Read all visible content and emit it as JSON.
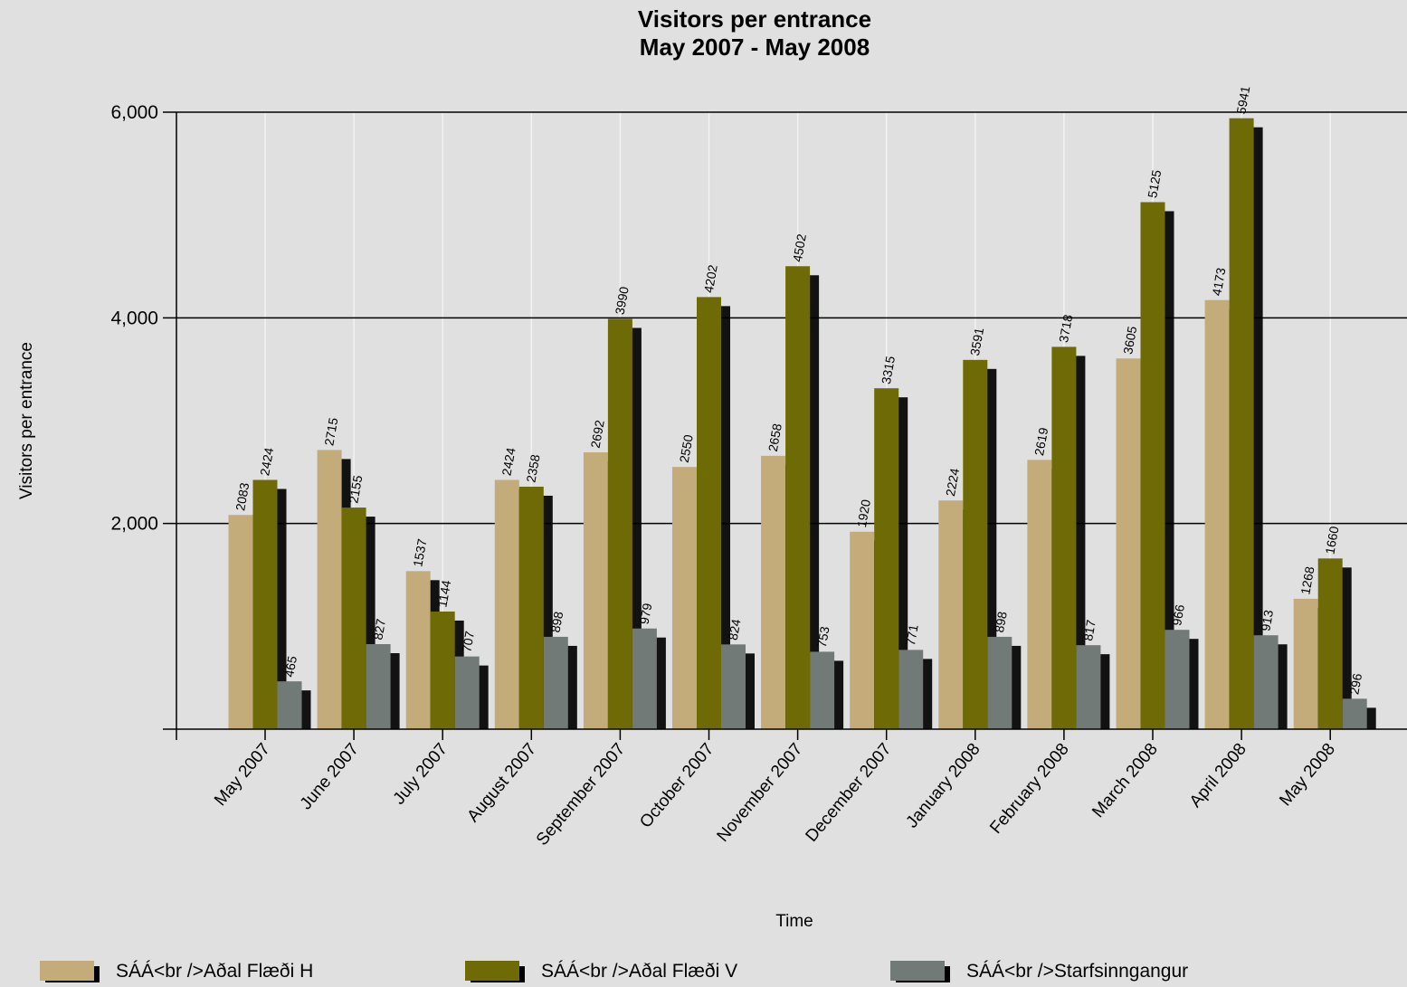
{
  "chart_data": {
    "type": "bar",
    "title": "Visitors per entrance",
    "subtitle": "May 2007 - May 2008",
    "xlabel": "Time",
    "ylabel": "Visitors per entrance",
    "ylim": [
      0,
      6000
    ],
    "yticks": [
      {
        "value": 2000,
        "label": "2,000"
      },
      {
        "value": 4000,
        "label": "4,000"
      },
      {
        "value": 6000,
        "label": "6,000"
      }
    ],
    "grid": true,
    "legend_position": "bottom",
    "categories": [
      "May 2007",
      "June 2007",
      "July 2007",
      "August 2007",
      "September 2007",
      "October 2007",
      "November 2007",
      "December 2007",
      "January 2008",
      "February 2008",
      "March 2008",
      "April 2008",
      "May 2008"
    ],
    "series": [
      {
        "name": "SÁÁ<br />Aðal Flæði H",
        "color": "#c4ab7a",
        "values": [
          2083,
          2715,
          1537,
          2424,
          2692,
          2550,
          2658,
          1920,
          2224,
          2619,
          3605,
          4173,
          1268
        ],
        "labels": [
          "2083",
          "2715",
          "1537",
          "2424",
          "2692",
          "2550",
          "2658",
          "1920",
          "2224",
          "2619",
          "3605",
          "4173",
          "1268"
        ]
      },
      {
        "name": "SÁÁ<br />Aðal Flæði V",
        "color": "#6e6a05",
        "values": [
          2424,
          2155,
          1144,
          2358,
          3990,
          4202,
          4502,
          3315,
          3591,
          3718,
          5125,
          5941,
          1660
        ],
        "labels": [
          "2424",
          "2155",
          "1144",
          "2358",
          "3990",
          "4202",
          "4502",
          "3315",
          "3591",
          "3718",
          "5125",
          "5941",
          "1660"
        ]
      },
      {
        "name": "SÁÁ<br />Starfsinngangur",
        "color": "#727a78",
        "values": [
          465,
          827,
          707,
          898,
          979,
          824,
          753,
          771,
          898,
          817,
          966,
          913,
          296
        ],
        "labels": [
          "465",
          "827",
          "707",
          "898",
          "979",
          "824",
          "753",
          "771",
          "898",
          "817",
          "966",
          "913",
          "296"
        ]
      }
    ]
  }
}
